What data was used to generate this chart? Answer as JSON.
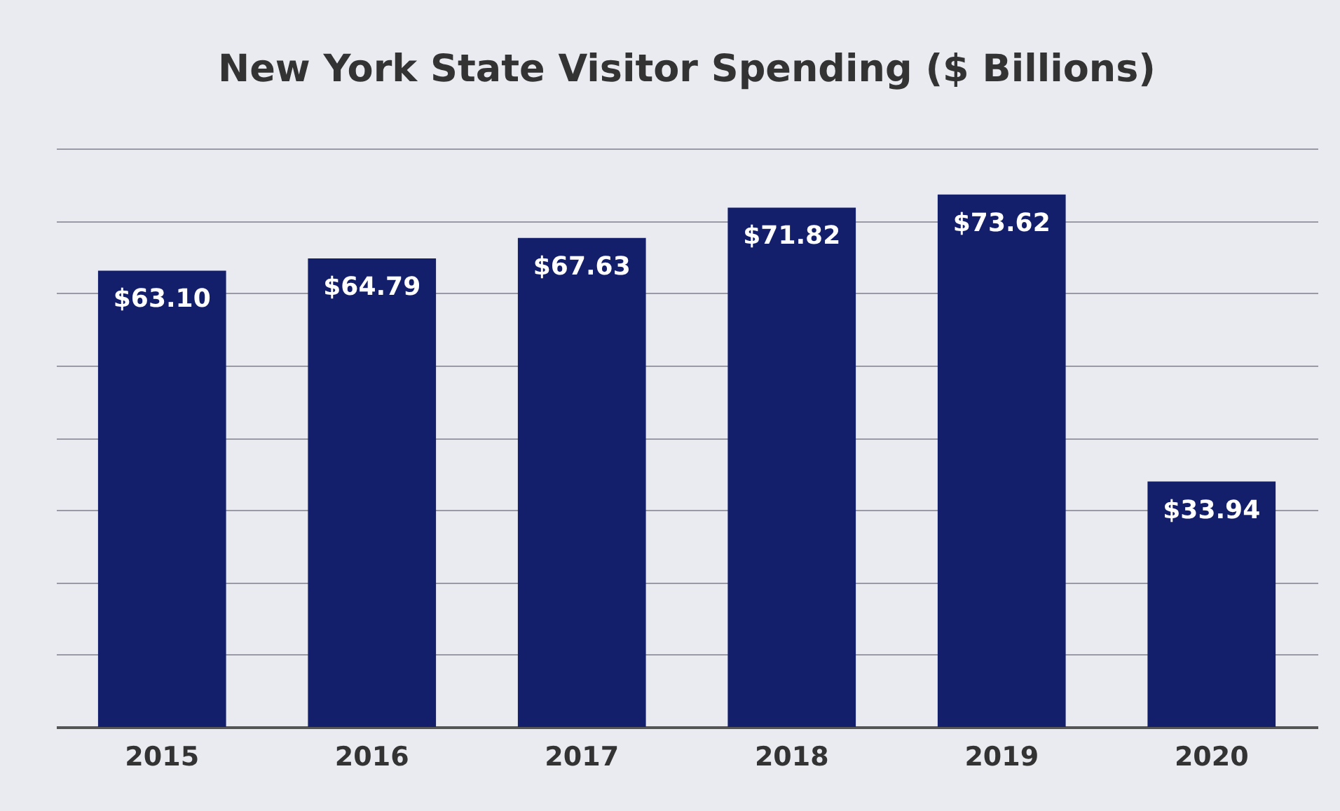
{
  "chart_data": {
    "type": "bar",
    "title": "New York State Visitor Spending ($ Billions)",
    "categories": [
      "2015",
      "2016",
      "2017",
      "2018",
      "2019",
      "2020"
    ],
    "values": [
      63.1,
      64.79,
      67.63,
      71.82,
      73.62,
      33.94
    ],
    "value_labels": [
      "$63.10",
      "$64.79",
      "$67.63",
      "$71.82",
      "$73.62",
      "$33.94"
    ],
    "color": "#141f6b",
    "ylim": [
      0,
      80
    ],
    "yticks": [
      {
        "value": 0,
        "label": null
      },
      {
        "value": 10,
        "label": null
      },
      {
        "value": 20,
        "label": null
      },
      {
        "value": 30,
        "label": null
      },
      {
        "value": 40,
        "label": null
      },
      {
        "value": 50,
        "label": null
      },
      {
        "value": 60,
        "label": null
      },
      {
        "value": 70,
        "label": null
      },
      {
        "value": 80,
        "label": null
      }
    ],
    "grid": "y",
    "tick_labels": "x"
  }
}
